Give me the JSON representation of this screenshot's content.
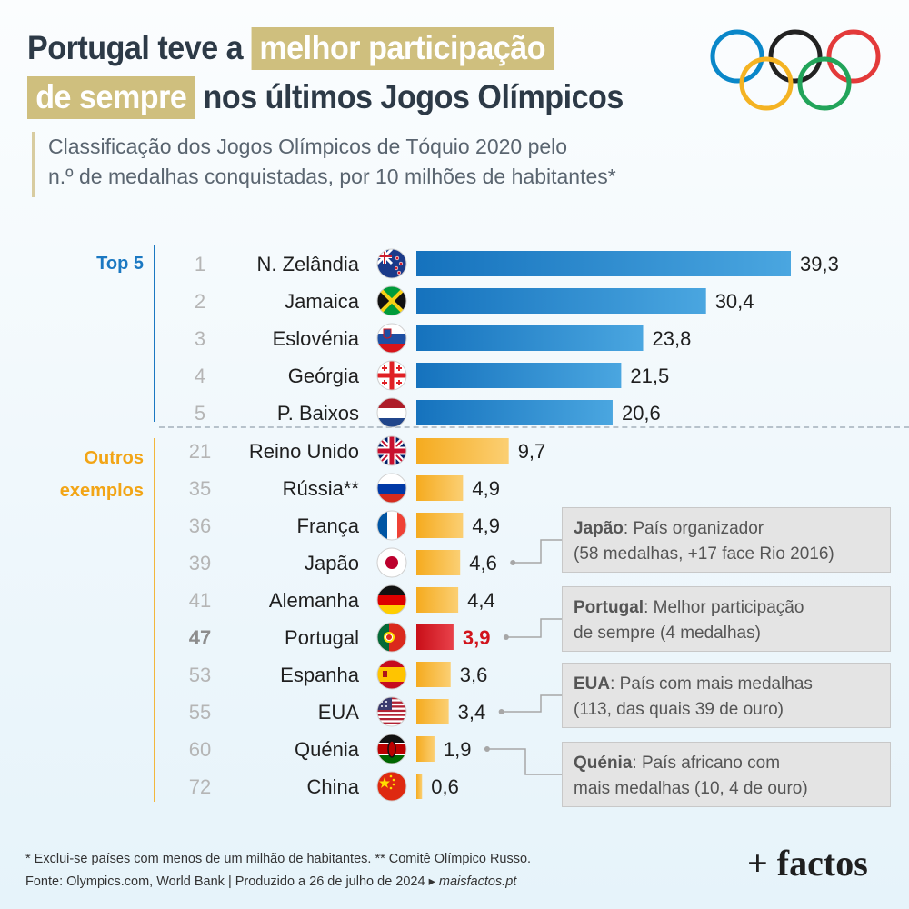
{
  "title": {
    "line1_plain": "Portugal teve a",
    "line1_highlight": "melhor participação",
    "line2_highlight": "de sempre",
    "line2_plain": "nos últimos Jogos Olímpicos"
  },
  "subtitle": {
    "line1": "Classificação dos Jogos Olímpicos de Tóquio 2020 pelo",
    "line2": "n.º de medalhas conquistadas, por 10 milhões de habitantes*"
  },
  "colors": {
    "top5": "#1b78c2",
    "others": "#f6b22e",
    "portugal": "#d1141c",
    "title_highlight": "#cfbf7e"
  },
  "chart_data": {
    "type": "bar",
    "orientation": "horizontal",
    "groups": [
      {
        "label": "Top 5",
        "color": "#1b78c2"
      },
      {
        "label": "Outros exemplos",
        "color": "#f6b22e"
      }
    ],
    "rows": [
      {
        "rank": "1",
        "country": "N. Zelândia",
        "value": 39.3,
        "label": "39,3",
        "group": 0,
        "flag": "nz-flag-icon"
      },
      {
        "rank": "2",
        "country": "Jamaica",
        "value": 30.4,
        "label": "30,4",
        "group": 0,
        "flag": "jamaica-flag-icon"
      },
      {
        "rank": "3",
        "country": "Eslovénia",
        "value": 23.8,
        "label": "23,8",
        "group": 0,
        "flag": "slovenia-flag-icon"
      },
      {
        "rank": "4",
        "country": "Geórgia",
        "value": 21.5,
        "label": "21,5",
        "group": 0,
        "flag": "georgia-flag-icon"
      },
      {
        "rank": "5",
        "country": "P. Baixos",
        "value": 20.6,
        "label": "20,6",
        "group": 0,
        "flag": "netherlands-flag-icon"
      },
      {
        "rank": "21",
        "country": "Reino Unido",
        "value": 9.7,
        "label": "9,7",
        "group": 1,
        "flag": "uk-flag-icon"
      },
      {
        "rank": "35",
        "country": "Rússia**",
        "value": 4.9,
        "label": "4,9",
        "group": 1,
        "flag": "russia-flag-icon"
      },
      {
        "rank": "36",
        "country": "França",
        "value": 4.9,
        "label": "4,9",
        "group": 1,
        "flag": "france-flag-icon"
      },
      {
        "rank": "39",
        "country": "Japão",
        "value": 4.6,
        "label": "4,6",
        "group": 1,
        "flag": "japan-flag-icon"
      },
      {
        "rank": "41",
        "country": "Alemanha",
        "value": 4.4,
        "label": "4,4",
        "group": 1,
        "flag": "germany-flag-icon"
      },
      {
        "rank": "47",
        "country": "Portugal",
        "value": 3.9,
        "label": "3,9",
        "group": 1,
        "flag": "portugal-flag-icon",
        "highlight": true
      },
      {
        "rank": "53",
        "country": "Espanha",
        "value": 3.6,
        "label": "3,6",
        "group": 1,
        "flag": "spain-flag-icon"
      },
      {
        "rank": "55",
        "country": "EUA",
        "value": 3.4,
        "label": "3,4",
        "group": 1,
        "flag": "usa-flag-icon"
      },
      {
        "rank": "60",
        "country": "Quénia",
        "value": 1.9,
        "label": "1,9",
        "group": 1,
        "flag": "kenya-flag-icon"
      },
      {
        "rank": "72",
        "country": "China",
        "value": 0.6,
        "label": "0,6",
        "group": 1,
        "flag": "china-flag-icon"
      }
    ],
    "xlim": [
      0,
      39.3
    ],
    "grid": false
  },
  "callouts": [
    {
      "country": "Japão",
      "bold": "Japão",
      "text1": ": País organizador",
      "text2": "(58 medalhas, +17 face Rio 2016)"
    },
    {
      "country": "Portugal",
      "bold": "Portugal",
      "text1": ": Melhor participação",
      "text2": "de sempre (4 medalhas)"
    },
    {
      "country": "EUA",
      "bold": "EUA",
      "text1": ": País com mais medalhas",
      "text2": "(113, das quais 39 de ouro)"
    },
    {
      "country": "Quénia",
      "bold": "Quénia",
      "text1": ": País africano com",
      "text2": "mais medalhas (10, 4 de ouro)"
    }
  ],
  "footnotes": {
    "line1": "* Exclui-se países com menos de um milhão de habitantes. ** Comitê Olímpico Russo.",
    "line2_prefix": "Fonte: Olympics.com, World Bank |  Produzido a 26 de julho de 2024 ▸ ",
    "line2_site": "maisfactos.pt"
  },
  "brand": "+ factos"
}
